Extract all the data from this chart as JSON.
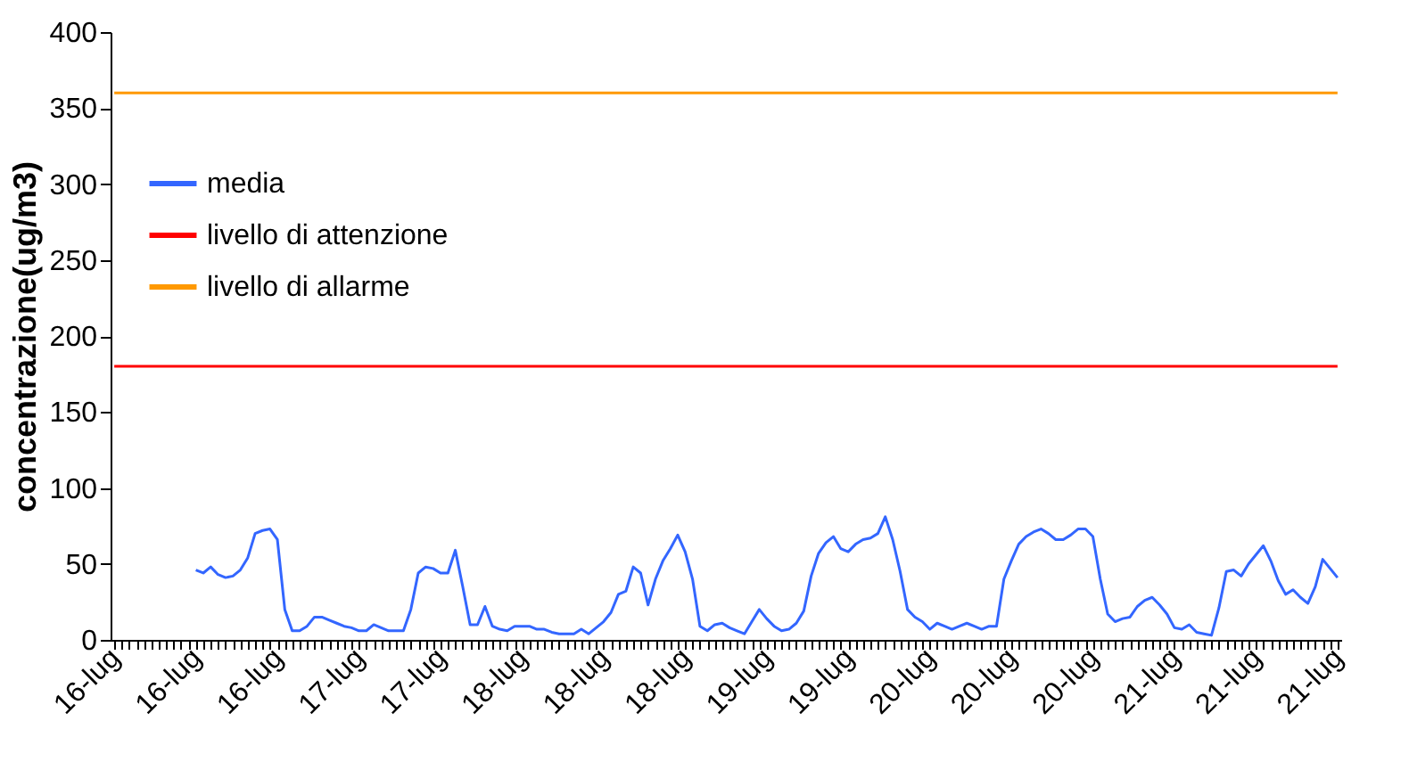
{
  "chart_data": {
    "type": "line",
    "ylabel": "concentrazione(ug/m3)",
    "ylim": [
      0,
      400
    ],
    "yticks": [
      0,
      50,
      100,
      150,
      200,
      250,
      300,
      350,
      400
    ],
    "grid": false,
    "legend": "top left",
    "categories": [
      "16-lug",
      null,
      null,
      null,
      null,
      null,
      null,
      null,
      null,
      null,
      null,
      "16-lug",
      null,
      null,
      null,
      null,
      null,
      null,
      null,
      null,
      null,
      null,
      "16-lug",
      null,
      null,
      null,
      null,
      null,
      null,
      null,
      null,
      null,
      null,
      "17-lug",
      null,
      null,
      null,
      null,
      null,
      null,
      null,
      null,
      null,
      null,
      "17-lug",
      null,
      null,
      null,
      null,
      null,
      null,
      null,
      null,
      null,
      null,
      "18-lug",
      null,
      null,
      null,
      null,
      null,
      null,
      null,
      null,
      null,
      null,
      "18-lug",
      null,
      null,
      null,
      null,
      null,
      null,
      null,
      null,
      null,
      null,
      "18-lug",
      null,
      null,
      null,
      null,
      null,
      null,
      null,
      null,
      null,
      null,
      "19-lug",
      null,
      null,
      null,
      null,
      null,
      null,
      null,
      null,
      null,
      null,
      "19-lug",
      null,
      null,
      null,
      null,
      null,
      null,
      null,
      null,
      null,
      null,
      "20-lug",
      null,
      null,
      null,
      null,
      null,
      null,
      null,
      null,
      null,
      null,
      "20-lug",
      null,
      null,
      null,
      null,
      null,
      null,
      null,
      null,
      null,
      null,
      "20-lug",
      null,
      null,
      null,
      null,
      null,
      null,
      null,
      null,
      null,
      null,
      "21-lug",
      null,
      null,
      null,
      null,
      null,
      null,
      null,
      null,
      null,
      null,
      "21-lug",
      null,
      null,
      null,
      null,
      null,
      null,
      null,
      null,
      null,
      null,
      "21-lug"
    ],
    "series": [
      {
        "name": "media",
        "color": "#3366ff",
        "values": [
          null,
          null,
          null,
          null,
          null,
          null,
          null,
          null,
          null,
          null,
          null,
          46,
          44,
          48,
          43,
          41,
          42,
          46,
          54,
          70,
          72,
          73,
          66,
          20,
          6,
          6,
          9,
          15,
          15,
          13,
          11,
          9,
          8,
          6,
          6,
          10,
          8,
          6,
          6,
          6,
          20,
          44,
          48,
          47,
          44,
          44,
          59,
          35,
          10,
          10,
          22,
          9,
          7,
          6,
          9,
          9,
          9,
          7,
          7,
          5,
          4,
          4,
          4,
          7,
          4,
          8,
          12,
          18,
          30,
          32,
          48,
          44,
          23,
          40,
          52,
          60,
          69,
          58,
          40,
          9,
          6,
          10,
          11,
          8,
          6,
          4,
          12,
          20,
          14,
          9,
          6,
          7,
          11,
          19,
          42,
          57,
          64,
          68,
          60,
          58,
          63,
          66,
          67,
          70,
          81,
          66,
          45,
          20,
          15,
          12,
          7,
          11,
          9,
          7,
          9,
          11,
          9,
          7,
          9,
          9,
          40,
          52,
          63,
          68,
          71,
          73,
          70,
          66,
          66,
          69,
          73,
          73,
          68,
          40,
          17,
          12,
          14,
          15,
          22,
          26,
          28,
          23,
          17,
          8,
          7,
          10,
          5,
          4,
          3,
          21,
          45,
          46,
          42,
          50,
          56,
          62,
          52,
          39,
          30,
          33,
          28,
          24,
          35,
          53,
          47,
          41
        ]
      },
      {
        "name": "livello di attenzione",
        "color": "#ff0000",
        "values": [
          180,
          180,
          180,
          180,
          180,
          180,
          180,
          180,
          180,
          180,
          180,
          180,
          180,
          180,
          180,
          180,
          180,
          180,
          180,
          180,
          180,
          180,
          180,
          180,
          180,
          180,
          180,
          180,
          180,
          180,
          180,
          180,
          180,
          180,
          180,
          180,
          180,
          180,
          180,
          180,
          180,
          180,
          180,
          180,
          180,
          180,
          180,
          180,
          180,
          180,
          180,
          180,
          180,
          180,
          180,
          180,
          180,
          180,
          180,
          180,
          180,
          180,
          180,
          180,
          180,
          180,
          180,
          180,
          180,
          180,
          180,
          180,
          180,
          180,
          180,
          180,
          180,
          180,
          180,
          180,
          180,
          180,
          180,
          180,
          180,
          180,
          180,
          180,
          180,
          180,
          180,
          180,
          180,
          180,
          180,
          180,
          180,
          180,
          180,
          180,
          180,
          180,
          180,
          180,
          180,
          180,
          180,
          180,
          180,
          180,
          180,
          180,
          180,
          180,
          180,
          180,
          180,
          180,
          180,
          180,
          180,
          180,
          180,
          180,
          180,
          180,
          180,
          180,
          180,
          180,
          180,
          180,
          180,
          180,
          180,
          180,
          180,
          180,
          180,
          180,
          180,
          180,
          180,
          180,
          180,
          180,
          180,
          180,
          180,
          180,
          180,
          180,
          180,
          180,
          180,
          180,
          180,
          180,
          180,
          180,
          180,
          180,
          180,
          180,
          180,
          180
        ]
      },
      {
        "name": "livello di allarme",
        "color": "#ff9900",
        "values": [
          360,
          360,
          360,
          360,
          360,
          360,
          360,
          360,
          360,
          360,
          360,
          360,
          360,
          360,
          360,
          360,
          360,
          360,
          360,
          360,
          360,
          360,
          360,
          360,
          360,
          360,
          360,
          360,
          360,
          360,
          360,
          360,
          360,
          360,
          360,
          360,
          360,
          360,
          360,
          360,
          360,
          360,
          360,
          360,
          360,
          360,
          360,
          360,
          360,
          360,
          360,
          360,
          360,
          360,
          360,
          360,
          360,
          360,
          360,
          360,
          360,
          360,
          360,
          360,
          360,
          360,
          360,
          360,
          360,
          360,
          360,
          360,
          360,
          360,
          360,
          360,
          360,
          360,
          360,
          360,
          360,
          360,
          360,
          360,
          360,
          360,
          360,
          360,
          360,
          360,
          360,
          360,
          360,
          360,
          360,
          360,
          360,
          360,
          360,
          360,
          360,
          360,
          360,
          360,
          360,
          360,
          360,
          360,
          360,
          360,
          360,
          360,
          360,
          360,
          360,
          360,
          360,
          360,
          360,
          360,
          360,
          360,
          360,
          360,
          360,
          360,
          360,
          360,
          360,
          360,
          360,
          360,
          360,
          360,
          360,
          360,
          360,
          360,
          360,
          360,
          360,
          360,
          360,
          360,
          360,
          360,
          360,
          360,
          360,
          360,
          360,
          360,
          360,
          360,
          360,
          360,
          360,
          360,
          360,
          360,
          360,
          360,
          360,
          360,
          360,
          360
        ]
      }
    ]
  }
}
